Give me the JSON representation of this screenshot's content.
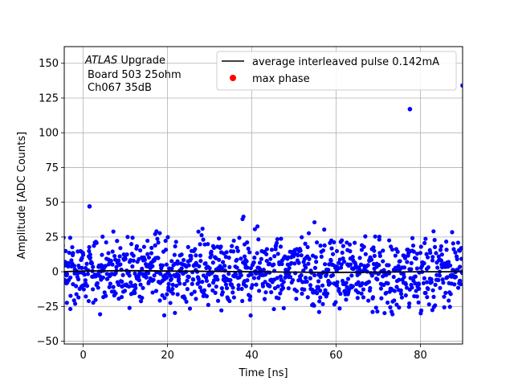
{
  "chart_data": {
    "type": "scatter",
    "xlabel": "Time [ns]",
    "ylabel": "Amplitude [ADC Counts]",
    "xlim": [
      -4.5,
      90
    ],
    "ylim": [
      -52,
      162
    ],
    "xticks": [
      0,
      20,
      40,
      60,
      80
    ],
    "yticks": [
      -50,
      -25,
      0,
      25,
      50,
      75,
      100,
      125,
      150
    ],
    "grid": true,
    "legend_position": "top-right",
    "annotation": {
      "line1_italic": "ATLAS",
      "line1_rest": " Upgrade",
      "line2": "Board 503 25ohm",
      "line3": "Ch067 35dB"
    },
    "series": [
      {
        "name": "average interleaved pulse 0.142mA",
        "kind": "line",
        "color": "#000000",
        "x": [
          -5,
          0,
          10,
          20,
          30,
          40,
          50,
          60,
          70,
          80,
          90
        ],
        "y": [
          0,
          0.5,
          0.8,
          0.5,
          0.3,
          0,
          -0.3,
          -0.5,
          -0.3,
          0,
          0
        ]
      },
      {
        "name": "max phase",
        "kind": "marker",
        "color": "#ff0000",
        "x": [],
        "y": []
      },
      {
        "name": "",
        "kind": "scatter",
        "color": "#0000ff",
        "outliers": [
          {
            "x": 1.5,
            "y": 47
          },
          {
            "x": 77.5,
            "y": 117
          },
          {
            "x": 90,
            "y": 134
          }
        ],
        "noise_stddev": 13,
        "point_count": 1100,
        "x_range": [
          -5,
          90
        ]
      }
    ]
  }
}
